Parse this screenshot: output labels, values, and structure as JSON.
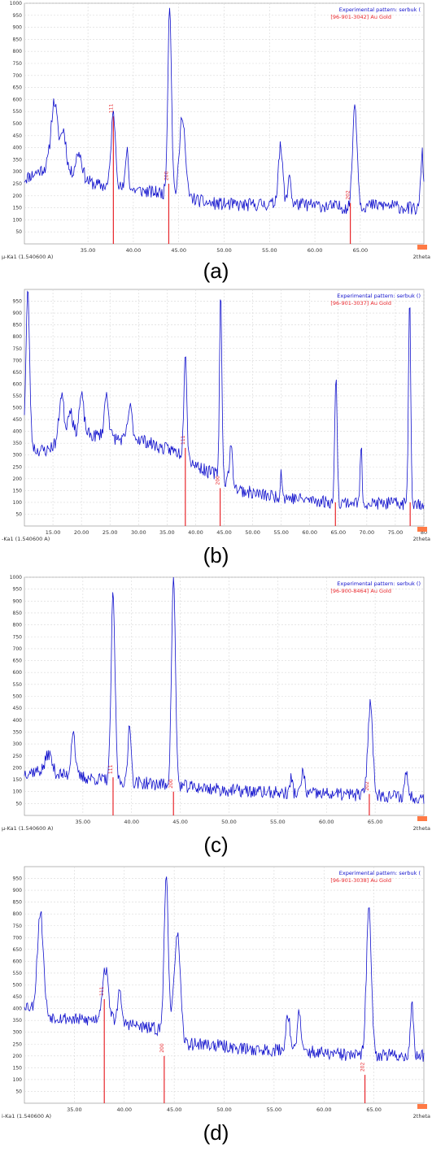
{
  "chart_data": [
    {
      "type": "line",
      "caption": "(a)",
      "legend_position": "top-right",
      "legend": [
        "Experimental pattern: serbuk (",
        "[96-901-3042] Au Gold"
      ],
      "wavelength_label": "µ-Ka1 (1.540600 A)",
      "x_axis_label": "2theta",
      "xlim": [
        28.0,
        72.0
      ],
      "ylim": [
        0,
        1000
      ],
      "x_ticks": [
        "35.00",
        "40.00",
        "45.00",
        "50.00",
        "55.00",
        "60.00",
        "65.00"
      ],
      "x_tick_values": [
        35,
        40,
        45,
        50,
        55,
        60,
        65
      ],
      "y_ticks": [
        "50",
        "100",
        "150",
        "200",
        "250",
        "300",
        "350",
        "400",
        "450",
        "500",
        "550",
        "600",
        "650",
        "700",
        "750",
        "800",
        "850",
        "900",
        "950",
        "1000"
      ],
      "grid": true,
      "baseline": [
        [
          28,
          270
        ],
        [
          31,
          330
        ],
        [
          33,
          290
        ],
        [
          36,
          245
        ],
        [
          38,
          235
        ],
        [
          40,
          225
        ],
        [
          42,
          215
        ],
        [
          44,
          210
        ],
        [
          46,
          195
        ],
        [
          48,
          170
        ],
        [
          50,
          165
        ],
        [
          52,
          160
        ],
        [
          54,
          165
        ],
        [
          56,
          165
        ],
        [
          58,
          165
        ],
        [
          60,
          160
        ],
        [
          62,
          155
        ],
        [
          64,
          150
        ],
        [
          66,
          160
        ],
        [
          68,
          160
        ],
        [
          70,
          150
        ],
        [
          72,
          140
        ]
      ],
      "peaks": [
        [
          31.3,
          590,
          0.35
        ],
        [
          32.3,
          470,
          0.3
        ],
        [
          34.0,
          380,
          0.35
        ],
        [
          37.8,
          540,
          0.25
        ],
        [
          39.3,
          400,
          0.15
        ],
        [
          44.0,
          1000,
          0.2
        ],
        [
          45.4,
          540,
          0.3
        ],
        [
          56.2,
          400,
          0.25
        ],
        [
          57.2,
          300,
          0.15
        ],
        [
          64.4,
          580,
          0.25
        ],
        [
          71.8,
          380,
          0.15
        ]
      ],
      "reference": [
        {
          "x": 37.8,
          "y": 530,
          "hkl": "111"
        },
        {
          "x": 43.9,
          "y": 250,
          "hkl": "200"
        },
        {
          "x": 63.9,
          "y": 170,
          "hkl": "202"
        }
      ],
      "seed": 11
    },
    {
      "type": "line",
      "caption": "(b)",
      "legend_position": "top-right",
      "legend": [
        "Experimental pattern: serbuk ()",
        "[96-901-3037] Au Gold"
      ],
      "wavelength_label": "-Ka1 (1.540600 A)",
      "x_axis_label": "2theta",
      "xlim": [
        10.0,
        80.0
      ],
      "ylim": [
        0,
        1000
      ],
      "x_ticks": [
        "15.00",
        "20.00",
        "25.00",
        "30.00",
        "35.00",
        "40.00",
        "45.00",
        "50.00",
        "55.00",
        "60.00",
        "65.00",
        "70.00",
        "75.00",
        "80"
      ],
      "x_tick_values": [
        15,
        20,
        25,
        30,
        35,
        40,
        45,
        50,
        55,
        60,
        65,
        70,
        75,
        80
      ],
      "y_ticks": [
        "50",
        "100",
        "150",
        "200",
        "250",
        "300",
        "350",
        "400",
        "450",
        "500",
        "550",
        "600",
        "650",
        "700",
        "750",
        "800",
        "850",
        "900",
        "950"
      ],
      "grid": true,
      "baseline": [
        [
          10,
          400
        ],
        [
          12,
          320
        ],
        [
          14,
          320
        ],
        [
          16,
          360
        ],
        [
          18,
          380
        ],
        [
          20,
          400
        ],
        [
          22,
          380
        ],
        [
          24,
          390
        ],
        [
          26,
          370
        ],
        [
          28,
          360
        ],
        [
          30,
          370
        ],
        [
          32,
          350
        ],
        [
          34,
          330
        ],
        [
          36,
          320
        ],
        [
          38,
          300
        ],
        [
          40,
          260
        ],
        [
          42,
          230
        ],
        [
          44,
          220
        ],
        [
          46,
          170
        ],
        [
          48,
          150
        ],
        [
          50,
          140
        ],
        [
          52,
          130
        ],
        [
          54,
          125
        ],
        [
          56,
          120
        ],
        [
          58,
          115
        ],
        [
          60,
          110
        ],
        [
          62,
          105
        ],
        [
          64,
          100
        ],
        [
          68,
          100
        ],
        [
          72,
          95
        ],
        [
          76,
          95
        ],
        [
          80,
          95
        ]
      ],
      "peaks": [
        [
          10.6,
          990,
          0.3
        ],
        [
          16.5,
          560,
          0.4
        ],
        [
          18.0,
          500,
          0.4
        ],
        [
          20.0,
          550,
          0.4
        ],
        [
          24.4,
          560,
          0.35
        ],
        [
          28.5,
          500,
          0.4
        ],
        [
          38.2,
          750,
          0.25
        ],
        [
          44.4,
          1000,
          0.2
        ],
        [
          46.2,
          330,
          0.3
        ],
        [
          55.0,
          240,
          0.15
        ],
        [
          64.6,
          660,
          0.2
        ],
        [
          69.0,
          350,
          0.15
        ],
        [
          77.5,
          970,
          0.2
        ]
      ],
      "reference": [
        {
          "x": 38.2,
          "y": 330,
          "hkl": "111"
        },
        {
          "x": 44.3,
          "y": 160,
          "hkl": "200"
        },
        {
          "x": 64.5,
          "y": 100,
          "hkl": ""
        },
        {
          "x": 77.6,
          "y": 100,
          "hkl": ""
        }
      ],
      "seed": 23
    },
    {
      "type": "line",
      "caption": "(c)",
      "legend_position": "top-right",
      "legend": [
        "Experimental pattern: serbuk ()",
        "[96-900-8464] Au Gold"
      ],
      "wavelength_label": "µ-Ka1 (1.540600 A)",
      "x_axis_label": "2theta",
      "xlim": [
        29.0,
        70.0
      ],
      "ylim": [
        0,
        1000
      ],
      "x_ticks": [
        "35.00",
        "40.00",
        "45.00",
        "50.00",
        "55.00",
        "60.00",
        "65.00"
      ],
      "x_tick_values": [
        35,
        40,
        45,
        50,
        55,
        60,
        65
      ],
      "y_ticks": [
        "50",
        "100",
        "150",
        "200",
        "250",
        "300",
        "350",
        "400",
        "450",
        "500",
        "550",
        "600",
        "650",
        "700",
        "750",
        "800",
        "850",
        "900",
        "950",
        "1000"
      ],
      "grid": true,
      "baseline": [
        [
          29,
          180
        ],
        [
          31,
          190
        ],
        [
          33,
          170
        ],
        [
          35,
          160
        ],
        [
          37,
          150
        ],
        [
          40,
          140
        ],
        [
          43,
          130
        ],
        [
          46,
          120
        ],
        [
          50,
          105
        ],
        [
          55,
          95
        ],
        [
          60,
          90
        ],
        [
          65,
          85
        ],
        [
          70,
          75
        ]
      ],
      "peaks": [
        [
          31.5,
          260,
          0.3
        ],
        [
          34.0,
          360,
          0.2
        ],
        [
          38.1,
          920,
          0.2
        ],
        [
          39.8,
          400,
          0.15
        ],
        [
          44.3,
          1000,
          0.2
        ],
        [
          56.4,
          160,
          0.12
        ],
        [
          57.6,
          190,
          0.15
        ],
        [
          64.5,
          470,
          0.25
        ],
        [
          68.2,
          190,
          0.15
        ]
      ],
      "reference": [
        {
          "x": 38.1,
          "y": 160,
          "hkl": "111"
        },
        {
          "x": 44.3,
          "y": 100,
          "hkl": "200"
        },
        {
          "x": 64.4,
          "y": 90,
          "hkl": "202"
        }
      ],
      "seed": 37
    },
    {
      "type": "line",
      "caption": "(d)",
      "legend_position": "top-right",
      "legend": [
        "Experimental pattern: serbuk (",
        "[96-901-3038] Au Gold"
      ],
      "wavelength_label": "i-Ka1 (1.540600 A)",
      "x_axis_label": "2theta",
      "xlim": [
        30.0,
        70.0
      ],
      "ylim": [
        0,
        1000
      ],
      "x_ticks": [
        "35.00",
        "40.00",
        "45.00",
        "50.00",
        "55.00",
        "60.00",
        "65.00"
      ],
      "x_tick_values": [
        35,
        40,
        45,
        50,
        55,
        60,
        65
      ],
      "y_ticks": [
        "50",
        "100",
        "150",
        "200",
        "250",
        "300",
        "350",
        "400",
        "450",
        "500",
        "550",
        "600",
        "650",
        "700",
        "750",
        "800",
        "850",
        "900",
        "950"
      ],
      "grid": true,
      "baseline": [
        [
          30,
          420
        ],
        [
          32,
          370
        ],
        [
          34,
          360
        ],
        [
          36,
          350
        ],
        [
          38,
          360
        ],
        [
          40,
          340
        ],
        [
          42,
          320
        ],
        [
          44,
          310
        ],
        [
          46,
          250
        ],
        [
          48,
          250
        ],
        [
          50,
          240
        ],
        [
          52,
          230
        ],
        [
          54,
          225
        ],
        [
          56,
          225
        ],
        [
          58,
          220
        ],
        [
          60,
          210
        ],
        [
          62,
          205
        ],
        [
          64,
          200
        ],
        [
          66,
          205
        ],
        [
          68,
          200
        ],
        [
          70,
          200
        ]
      ],
      "peaks": [
        [
          31.6,
          810,
          0.3
        ],
        [
          38.1,
          570,
          0.3
        ],
        [
          39.5,
          500,
          0.15
        ],
        [
          44.2,
          980,
          0.2
        ],
        [
          45.3,
          720,
          0.3
        ],
        [
          56.4,
          380,
          0.2
        ],
        [
          57.5,
          400,
          0.15
        ],
        [
          64.5,
          820,
          0.25
        ],
        [
          68.8,
          420,
          0.15
        ]
      ],
      "reference": [
        {
          "x": 38.0,
          "y": 440,
          "hkl": "111"
        },
        {
          "x": 44.0,
          "y": 200,
          "hkl": "200"
        },
        {
          "x": 64.1,
          "y": 120,
          "hkl": "202"
        }
      ],
      "seed": 53
    }
  ],
  "colors": {
    "pattern": "#1010cc",
    "reference": "#e8262b",
    "grid": "#d8d8d8",
    "axis": "#000000",
    "marker": "#ff7a45"
  }
}
